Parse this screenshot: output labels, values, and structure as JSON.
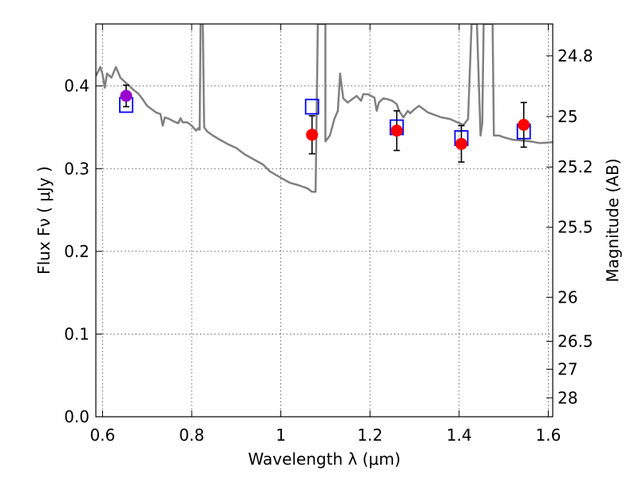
{
  "chart_data": {
    "type": "scatter",
    "xlabel": "Wavelength  λ (μm)",
    "ylabel": "Flux  Fν ( μJy )",
    "y2label": "Magnitude (AB)",
    "xlim": [
      0.585,
      1.61
    ],
    "ylim": [
      0.0,
      0.475
    ],
    "grid": true,
    "x_ticks": [
      0.6,
      0.8,
      1.0,
      1.2,
      1.4,
      1.6
    ],
    "x_tick_labels": [
      "0.6",
      "0.8",
      "1",
      "1.2",
      "1.4",
      "1.6"
    ],
    "y_ticks": [
      0.0,
      0.1,
      0.2,
      0.3,
      0.4
    ],
    "y_tick_labels": [
      "0.0",
      "0.1",
      "0.2",
      "0.3",
      "0.4"
    ],
    "y2_ticks": [
      {
        "label": "24.8",
        "flux": 0.4365
      },
      {
        "label": "25",
        "flux": 0.3631
      },
      {
        "label": "25.2",
        "flux": 0.302
      },
      {
        "label": "25.5",
        "flux": 0.2291
      },
      {
        "label": "26",
        "flux": 0.1445
      },
      {
        "label": "26.5",
        "flux": 0.0912
      },
      {
        "label": "27",
        "flux": 0.0575
      },
      {
        "label": "28",
        "flux": 0.0229
      }
    ],
    "series": [
      {
        "kind": "line",
        "color": "#808080",
        "points": [
          [
            0.585,
            0.412
          ],
          [
            0.595,
            0.423
          ],
          [
            0.6,
            0.414
          ],
          [
            0.605,
            0.398
          ],
          [
            0.61,
            0.415
          ],
          [
            0.62,
            0.41
          ],
          [
            0.63,
            0.423
          ],
          [
            0.64,
            0.41
          ],
          [
            0.65,
            0.405
          ],
          [
            0.66,
            0.4
          ],
          [
            0.67,
            0.395
          ],
          [
            0.68,
            0.391
          ],
          [
            0.69,
            0.384
          ],
          [
            0.695,
            0.38
          ],
          [
            0.7,
            0.376
          ],
          [
            0.71,
            0.372
          ],
          [
            0.72,
            0.368
          ],
          [
            0.73,
            0.366
          ],
          [
            0.735,
            0.352
          ],
          [
            0.74,
            0.362
          ],
          [
            0.75,
            0.36
          ],
          [
            0.76,
            0.357
          ],
          [
            0.77,
            0.355
          ],
          [
            0.775,
            0.361
          ],
          [
            0.78,
            0.356
          ],
          [
            0.79,
            0.356
          ],
          [
            0.8,
            0.352
          ],
          [
            0.81,
            0.346
          ],
          [
            0.815,
            0.349
          ],
          [
            0.818,
            0.347
          ],
          [
            0.82,
            0.475
          ],
          [
            0.825,
            0.475
          ],
          [
            0.828,
            0.35
          ],
          [
            0.835,
            0.345
          ],
          [
            0.845,
            0.341
          ],
          [
            0.86,
            0.336
          ],
          [
            0.88,
            0.33
          ],
          [
            0.9,
            0.325
          ],
          [
            0.92,
            0.317
          ],
          [
            0.94,
            0.311
          ],
          [
            0.96,
            0.305
          ],
          [
            0.975,
            0.297
          ],
          [
            1.0,
            0.289
          ],
          [
            1.02,
            0.283
          ],
          [
            1.04,
            0.28
          ],
          [
            1.06,
            0.276
          ],
          [
            1.07,
            0.272
          ],
          [
            1.078,
            0.272
          ],
          [
            1.083,
            0.475
          ],
          [
            1.1,
            0.475
          ],
          [
            1.1,
            0.333
          ],
          [
            1.11,
            0.34
          ],
          [
            1.12,
            0.36
          ],
          [
            1.128,
            0.37
          ],
          [
            1.133,
            0.415
          ],
          [
            1.14,
            0.385
          ],
          [
            1.15,
            0.38
          ],
          [
            1.16,
            0.384
          ],
          [
            1.17,
            0.388
          ],
          [
            1.18,
            0.382
          ],
          [
            1.185,
            0.39
          ],
          [
            1.195,
            0.39
          ],
          [
            1.21,
            0.386
          ],
          [
            1.215,
            0.37
          ],
          [
            1.22,
            0.38
          ],
          [
            1.23,
            0.385
          ],
          [
            1.24,
            0.384
          ],
          [
            1.25,
            0.382
          ],
          [
            1.26,
            0.378
          ],
          [
            1.265,
            0.37
          ],
          [
            1.275,
            0.362
          ],
          [
            1.285,
            0.37
          ],
          [
            1.29,
            0.367
          ],
          [
            1.3,
            0.372
          ],
          [
            1.31,
            0.376
          ],
          [
            1.32,
            0.372
          ],
          [
            1.33,
            0.368
          ],
          [
            1.34,
            0.366
          ],
          [
            1.36,
            0.362
          ],
          [
            1.38,
            0.36
          ],
          [
            1.4,
            0.355
          ],
          [
            1.41,
            0.353
          ],
          [
            1.42,
            0.36
          ],
          [
            1.428,
            0.475
          ],
          [
            1.44,
            0.475
          ],
          [
            1.448,
            0.34
          ],
          [
            1.452,
            0.355
          ],
          [
            1.455,
            0.475
          ],
          [
            1.475,
            0.475
          ],
          [
            1.478,
            0.34
          ],
          [
            1.49,
            0.34
          ],
          [
            1.5,
            0.338
          ],
          [
            1.52,
            0.335
          ],
          [
            1.54,
            0.334
          ],
          [
            1.56,
            0.333
          ],
          [
            1.58,
            0.331
          ],
          [
            1.61,
            0.332
          ]
        ]
      },
      {
        "kind": "open-square",
        "color": "#0000ff",
        "points": [
          [
            0.653,
            0.377
          ],
          [
            1.07,
            0.375
          ],
          [
            1.26,
            0.35
          ],
          [
            1.405,
            0.337
          ],
          [
            1.545,
            0.345
          ]
        ]
      },
      {
        "kind": "filled-circle-errorbar",
        "color": "#ff0000",
        "points": [
          {
            "x": 1.07,
            "y": 0.341,
            "err": 0.023
          },
          {
            "x": 1.26,
            "y": 0.346,
            "err": 0.024
          },
          {
            "x": 1.405,
            "y": 0.33,
            "err": 0.022
          },
          {
            "x": 1.545,
            "y": 0.353,
            "err": 0.027
          }
        ]
      },
      {
        "kind": "filled-circle-errorbar",
        "color": "#9900cc",
        "points": [
          {
            "x": 0.653,
            "y": 0.388,
            "err": 0.013
          }
        ]
      }
    ]
  }
}
